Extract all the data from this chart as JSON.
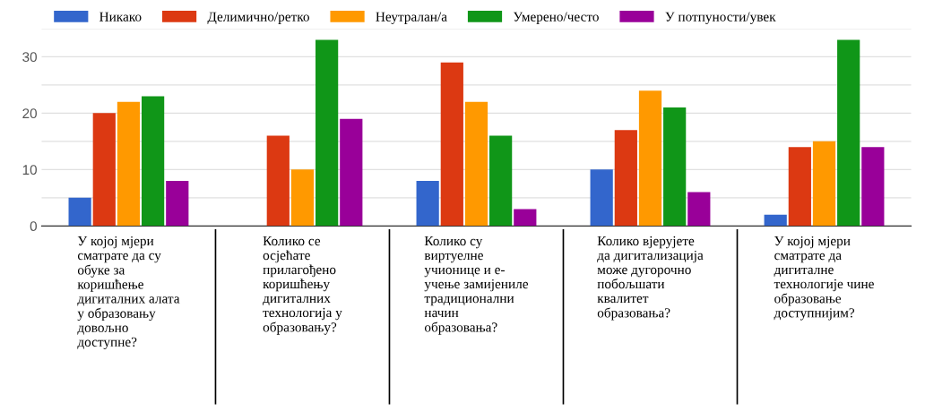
{
  "chart_data": {
    "type": "bar",
    "categories": [
      "У којој мјери\nсматрате да су\nобуке за\nкоришћење\nдигиталних алата\nу образовању\nдовољно\nдоступне?",
      "Колико се\nосјећате\nприлагођено\nкоришћењу\nдигиталних\nтехнологија у\nобразовању?",
      "Колико су\nвиртуелне\nучионице и е-\nучење замијениле\nтрадиционални\nначин\nобразовања?",
      "Колико вјерујете\nда дигитализација\nможе дугорочно\nпобољшати\nквалитет\nобразовања?",
      "У којој мјери\nсматрате да\nдигиталне\nтехнологије чине\nобразовање\nдоступнијим?"
    ],
    "series": [
      {
        "name": "Никако",
        "color": "#3366cc",
        "values": [
          5,
          0,
          8,
          10,
          2
        ]
      },
      {
        "name": "Делимично/ретко",
        "color": "#dc3912",
        "values": [
          20,
          16,
          29,
          17,
          14
        ]
      },
      {
        "name": "Неутралан/а",
        "color": "#ff9900",
        "values": [
          22,
          10,
          22,
          24,
          15
        ]
      },
      {
        "name": "Умерено/често",
        "color": "#109618",
        "values": [
          23,
          33,
          16,
          21,
          33
        ]
      },
      {
        "name": "У потпуности/увек",
        "color": "#990099",
        "values": [
          8,
          19,
          3,
          6,
          14
        ]
      }
    ],
    "ylim": [
      0,
      35
    ],
    "yticks": [
      0,
      {
        "value": 5,
        "label": null
      },
      10,
      {
        "value": 15,
        "label": null
      },
      20,
      {
        "value": 25,
        "label": null
      },
      30,
      {
        "value": 35,
        "label": null
      }
    ],
    "grid": "y",
    "legend": "top left"
  }
}
